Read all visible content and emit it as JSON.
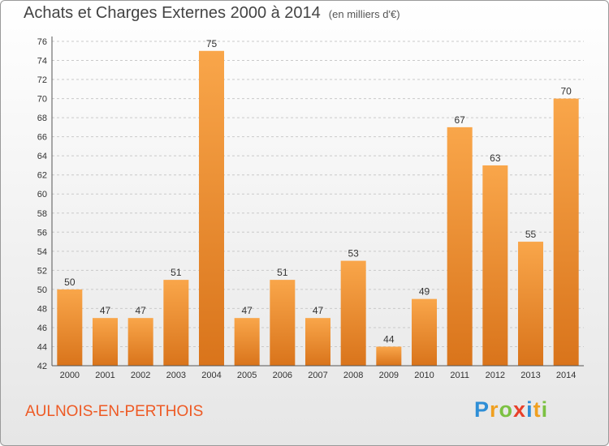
{
  "header": {
    "title": "Achats et Charges Externes 2000 à 2014",
    "subtitle": "(en milliers d'€)"
  },
  "footer": {
    "commune": "AULNOIS-EN-PERTHOIS",
    "brand": "Proxiti",
    "brand_letters": [
      {
        "char": "P",
        "color": "#2e8ed6"
      },
      {
        "char": "r",
        "color": "#f0a020"
      },
      {
        "char": "o",
        "color": "#7cc142"
      },
      {
        "char": "x",
        "color": "#e8402a"
      },
      {
        "char": "i",
        "color": "#2e8ed6"
      },
      {
        "char": "t",
        "color": "#f0a020"
      },
      {
        "char": "i",
        "color": "#7cc142"
      }
    ]
  },
  "colors": {
    "bar_light": "#f9a64a",
    "bar_dark": "#d9741b",
    "grid": "#c9c9c9",
    "commune_text": "#ee5a24"
  },
  "chart_data": {
    "type": "bar",
    "title": "Achats et Charges Externes 2000 à 2014",
    "subtitle": "(en milliers d'€)",
    "categories": [
      "2000",
      "2001",
      "2002",
      "2003",
      "2004",
      "2005",
      "2006",
      "2007",
      "2008",
      "2009",
      "2010",
      "2011",
      "2012",
      "2013",
      "2014"
    ],
    "values": [
      50,
      47,
      47,
      51,
      75,
      47,
      51,
      47,
      53,
      44,
      49,
      67,
      63,
      55,
      70
    ],
    "ylim": [
      42,
      76
    ],
    "yticks": [
      42,
      44,
      46,
      48,
      50,
      52,
      54,
      56,
      58,
      60,
      62,
      64,
      66,
      68,
      70,
      72,
      74,
      76
    ],
    "grid": true,
    "legend": "none"
  }
}
